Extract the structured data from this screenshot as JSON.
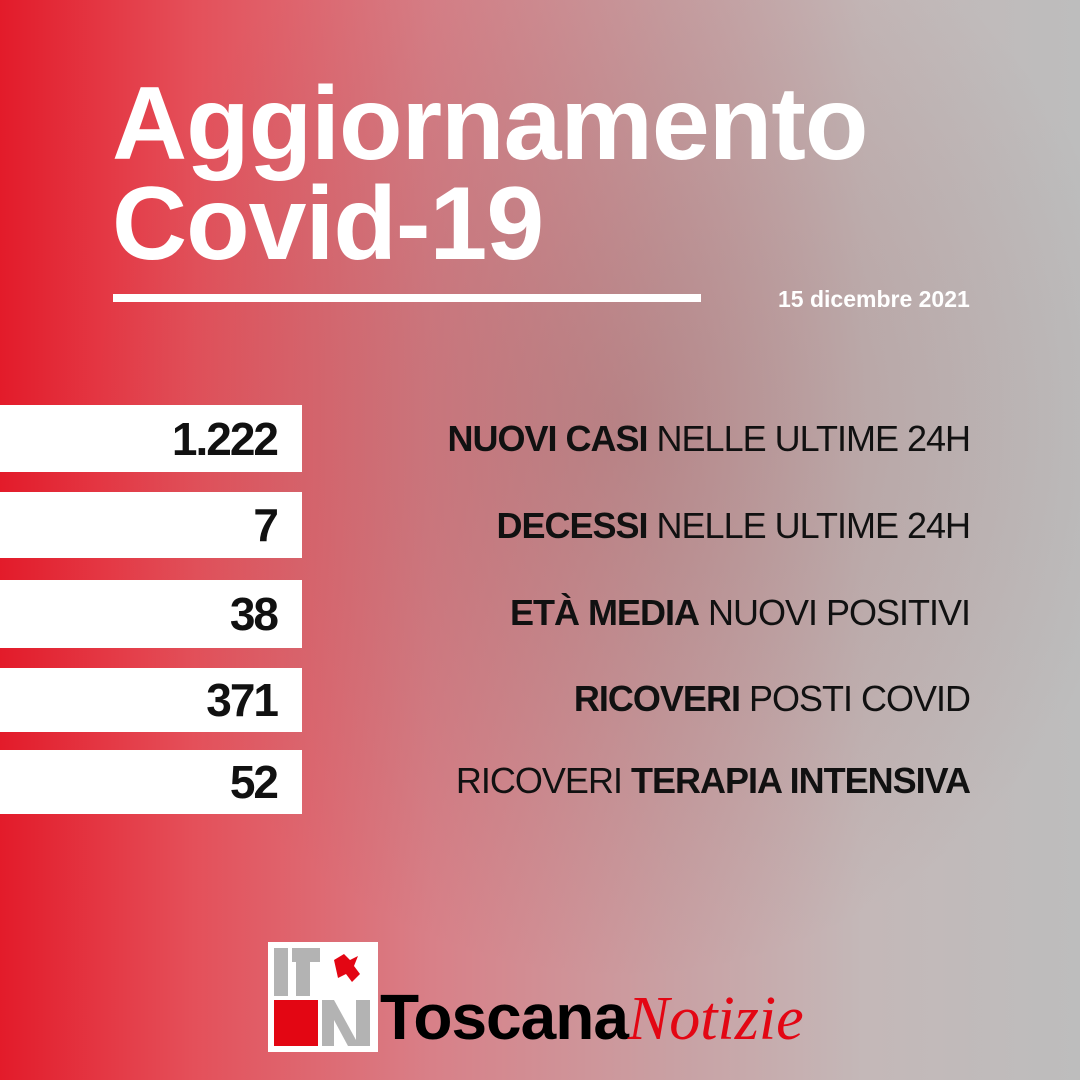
{
  "title": {
    "line1": "Aggiornamento",
    "line2": "Covid-19"
  },
  "date": "15 dicembre 2021",
  "stats": [
    {
      "value": "1.222",
      "bold": "NUOVI CASI",
      "normal": "NELLE ULTIME 24H",
      "order": "bold-first"
    },
    {
      "value": "7",
      "bold": "DECESSI",
      "normal": "NELLE ULTIME 24H",
      "order": "bold-first"
    },
    {
      "value": "38",
      "bold": "ETÀ MEDIA",
      "normal": "NUOVI POSITIVI",
      "order": "bold-first"
    },
    {
      "value": "371",
      "bold": "RICOVERI",
      "normal": "POSTI COVID",
      "order": "bold-first"
    },
    {
      "value": "52",
      "bold": "TERAPIA INTENSIVA",
      "normal": "RICOVERI",
      "order": "normal-first"
    }
  ],
  "logo": {
    "word1": "Toscana",
    "word2": "Notizie"
  },
  "colors": {
    "accent": "#e31b2a",
    "brand_red": "#e30613"
  }
}
